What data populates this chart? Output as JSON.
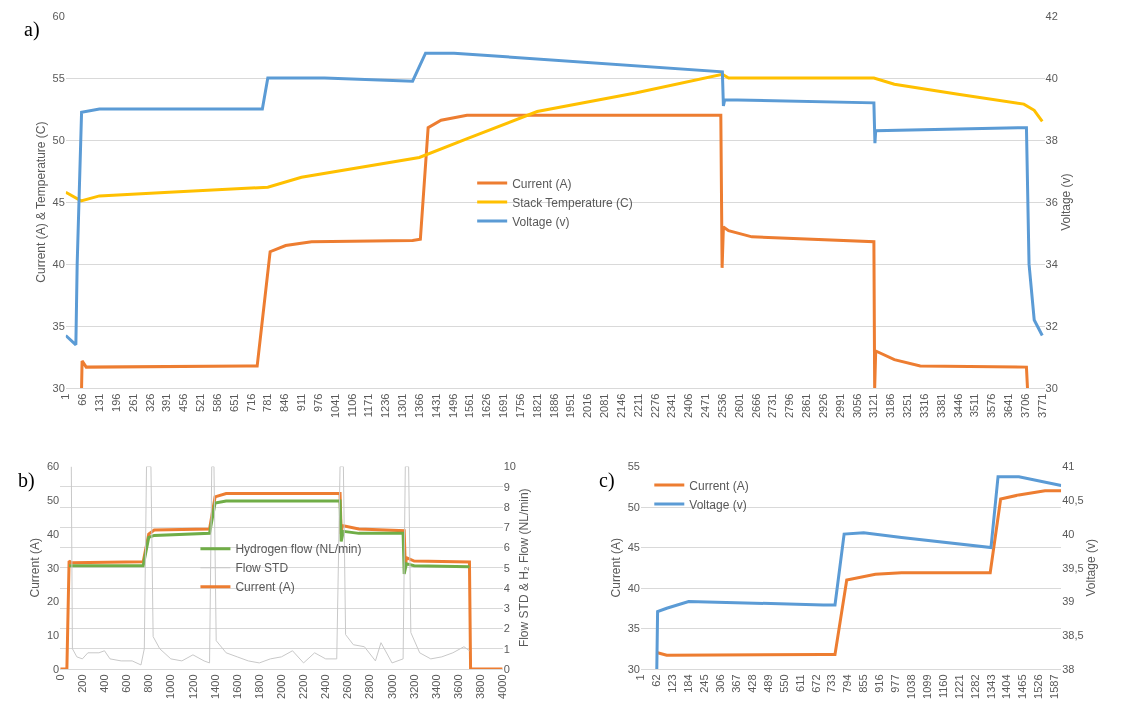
{
  "chart_data": [
    {
      "type": "line",
      "annotations": [
        "a)"
      ],
      "ylabel": "Current (A) & Temperature (C)",
      "y2label": "Voltage (v)",
      "xlim": [
        1,
        3780
      ],
      "xticks": [
        1,
        66,
        131,
        196,
        261,
        326,
        391,
        456,
        521,
        586,
        651,
        716,
        781,
        846,
        911,
        976,
        1041,
        1106,
        1171,
        1236,
        1301,
        1366,
        1431,
        1496,
        1561,
        1626,
        1691,
        1756,
        1821,
        1886,
        1951,
        2016,
        2081,
        2146,
        2211,
        2276,
        2341,
        2406,
        2471,
        2536,
        2601,
        2666,
        2731,
        2796,
        2861,
        2926,
        2991,
        3056,
        3121,
        3186,
        3251,
        3316,
        3381,
        3446,
        3511,
        3576,
        3641,
        3706,
        3771
      ],
      "ylim": [
        30,
        60
      ],
      "yticks": [
        30,
        35,
        40,
        45,
        50,
        55,
        60
      ],
      "y2lim": [
        30,
        42
      ],
      "y2ticks": [
        30,
        32,
        34,
        36,
        38,
        40,
        42
      ],
      "grid": "y",
      "legend": "center",
      "marker": "none",
      "line_style": "solid",
      "series": [
        {
          "name": "Current (A)",
          "color": "#ed7d31",
          "x": [
            62,
            64,
            80,
            700,
            740,
            790,
            850,
            950,
            1340,
            1370,
            1400,
            1450,
            1550,
            2530,
            2535,
            2540,
            2560,
            2650,
            3121,
            3124,
            3128,
            3200,
            3300,
            3710,
            3714
          ],
          "values": [
            30,
            32.2,
            31.7,
            31.8,
            31.8,
            41,
            41.5,
            41.8,
            41.9,
            42,
            51,
            51.6,
            52,
            52,
            39.7,
            43,
            42.7,
            42.2,
            41.8,
            30,
            33,
            32.3,
            31.8,
            31.7,
            30
          ]
        },
        {
          "name": "Stack Temperature (C)",
          "color": "#ffc000",
          "x": [
            1,
            60,
            131,
            400,
            781,
            911,
            1366,
            1561,
            1821,
            2200,
            2536,
            2560,
            2700,
            3121,
            3200,
            3446,
            3700,
            3740,
            3771
          ],
          "values": [
            45.8,
            45.1,
            45.5,
            45.8,
            46.2,
            47,
            48.6,
            50.2,
            52.3,
            53.8,
            55.3,
            55,
            55,
            55,
            54.5,
            53.7,
            52.9,
            52.4,
            51.5
          ]
        },
        {
          "name": "Voltage (v)",
          "color": "#5b9bd5",
          "axis": "y2",
          "x": [
            1,
            40,
            45,
            62,
            131,
            760,
            781,
            1000,
            1340,
            1390,
            1500,
            2536,
            2540,
            2545,
            3121,
            3125,
            3128,
            3700,
            3710,
            3720,
            3740,
            3771
          ],
          "values": [
            31.7,
            31.4,
            34,
            38.9,
            39,
            39,
            40,
            40,
            39.9,
            40.8,
            40.8,
            40.2,
            39.1,
            39.3,
            39.2,
            37.9,
            38.3,
            38.4,
            38.4,
            34,
            32.2,
            31.7
          ]
        }
      ]
    },
    {
      "type": "line",
      "annotations": [
        "b)"
      ],
      "ylabel": "Current (A)",
      "y2label": "Flow STD & H₂ Flow (NL/min)",
      "xlim": [
        0,
        4000
      ],
      "xticks": [
        0,
        200,
        400,
        600,
        800,
        1000,
        1200,
        1400,
        1600,
        1800,
        2000,
        2200,
        2400,
        2600,
        2800,
        3000,
        3200,
        3400,
        3600,
        3800,
        4000
      ],
      "ylim": [
        0,
        60
      ],
      "yticks": [
        0,
        10,
        20,
        30,
        40,
        50,
        60
      ],
      "y2lim": [
        0,
        10
      ],
      "y2ticks": [
        0,
        1,
        2,
        3,
        4,
        5,
        6,
        7,
        8,
        9,
        10
      ],
      "grid": "y2",
      "legend": "center",
      "marker": "none",
      "line_style": "solid",
      "series": [
        {
          "name": "Hydrogen flow (NL/min)",
          "color": "#70ad47",
          "axis": "y2",
          "x": [
            80,
            750,
            800,
            850,
            1350,
            1400,
            1500,
            2530,
            2540,
            2560,
            2700,
            3100,
            3110,
            3130,
            3200,
            3700
          ],
          "values": [
            5.1,
            5.1,
            6.5,
            6.6,
            6.7,
            8.2,
            8.3,
            8.3,
            6.3,
            6.8,
            6.7,
            6.7,
            4.7,
            5.2,
            5.1,
            5.05
          ]
        },
        {
          "name": "Flow STD",
          "color": "#c8c8c8",
          "axis": "y2",
          "x": [
            100,
            110,
            150,
            200,
            250,
            350,
            400,
            450,
            550,
            650,
            730,
            760,
            780,
            820,
            840,
            900,
            1000,
            1100,
            1200,
            1300,
            1350,
            1370,
            1390,
            1410,
            1500,
            1600,
            1700,
            1800,
            1900,
            2000,
            2100,
            2200,
            2300,
            2400,
            2500,
            2530,
            2560,
            2580,
            2650,
            2750,
            2850,
            2900,
            3000,
            3100,
            3120,
            3150,
            3170,
            3250,
            3350,
            3450,
            3550,
            3650,
            3700
          ],
          "values": [
            10,
            1,
            0.6,
            0.5,
            0.8,
            0.8,
            0.9,
            0.5,
            0.4,
            0.4,
            0.2,
            1,
            10,
            10,
            1.6,
            1,
            0.5,
            0.4,
            0.7,
            0.4,
            0.3,
            10,
            10,
            1.4,
            0.8,
            0.6,
            0.4,
            0.3,
            0.5,
            0.6,
            0.9,
            0.3,
            0.8,
            0.5,
            0.5,
            10,
            10,
            1.7,
            1.2,
            1.1,
            0.4,
            1.3,
            0.3,
            0.5,
            10,
            10,
            1.8,
            0.8,
            0.5,
            0.6,
            0.8,
            1.1,
            0.9
          ]
        },
        {
          "name": "Current (A)",
          "color": "#ed7d31",
          "x": [
            0,
            60,
            80,
            100,
            750,
            800,
            850,
            1350,
            1400,
            1500,
            2530,
            2540,
            2550,
            2700,
            3110,
            3120,
            3130,
            3200,
            3700,
            3710,
            4000
          ],
          "values": [
            0,
            0,
            32,
            31.5,
            31.8,
            40,
            41.2,
            41.5,
            51,
            52,
            52,
            40,
            42.5,
            41.5,
            41,
            30,
            33,
            32,
            31.7,
            0,
            0
          ]
        }
      ]
    },
    {
      "type": "line",
      "annotations": [
        "c)"
      ],
      "ylabel": "Current (A)",
      "y2label": "Voltage (v)",
      "xlim": [
        1,
        1612
      ],
      "xticks": [
        1,
        62,
        123,
        184,
        245,
        306,
        367,
        428,
        489,
        550,
        611,
        672,
        733,
        794,
        855,
        916,
        977,
        1038,
        1099,
        1160,
        1221,
        1282,
        1343,
        1404,
        1465,
        1526,
        1587
      ],
      "ylim": [
        30,
        55
      ],
      "yticks": [
        30,
        35,
        40,
        45,
        50,
        55
      ],
      "y2lim": [
        38,
        41
      ],
      "y2ticks": [
        38,
        {
          "value": 38.5,
          "label": "38,5"
        },
        39,
        {
          "value": 39.5,
          "label": "39,5"
        },
        40,
        {
          "value": 40.5,
          "label": "40,5"
        },
        41
      ],
      "grid": "y",
      "legend": "top left",
      "marker": "none",
      "line_style": "solid",
      "series": [
        {
          "name": "Current (A)",
          "color": "#ed7d31",
          "x": [
            65,
            100,
            700,
            745,
            790,
            900,
            1000,
            1340,
            1380,
            1450,
            1550,
            1612
          ],
          "values": [
            32,
            31.7,
            31.8,
            31.8,
            41,
            41.7,
            41.9,
            41.9,
            51,
            51.5,
            52,
            52
          ]
        },
        {
          "name": "Voltage (v)",
          "color": "#5b9bd5",
          "axis": "y2",
          "x": [
            62,
            65,
            100,
            184,
            700,
            745,
            780,
            855,
            1000,
            1343,
            1370,
            1450,
            1612
          ],
          "values": [
            38,
            38.85,
            38.9,
            39,
            38.95,
            38.95,
            40,
            40.02,
            39.95,
            39.8,
            40.85,
            40.85,
            40.72
          ]
        }
      ]
    }
  ]
}
